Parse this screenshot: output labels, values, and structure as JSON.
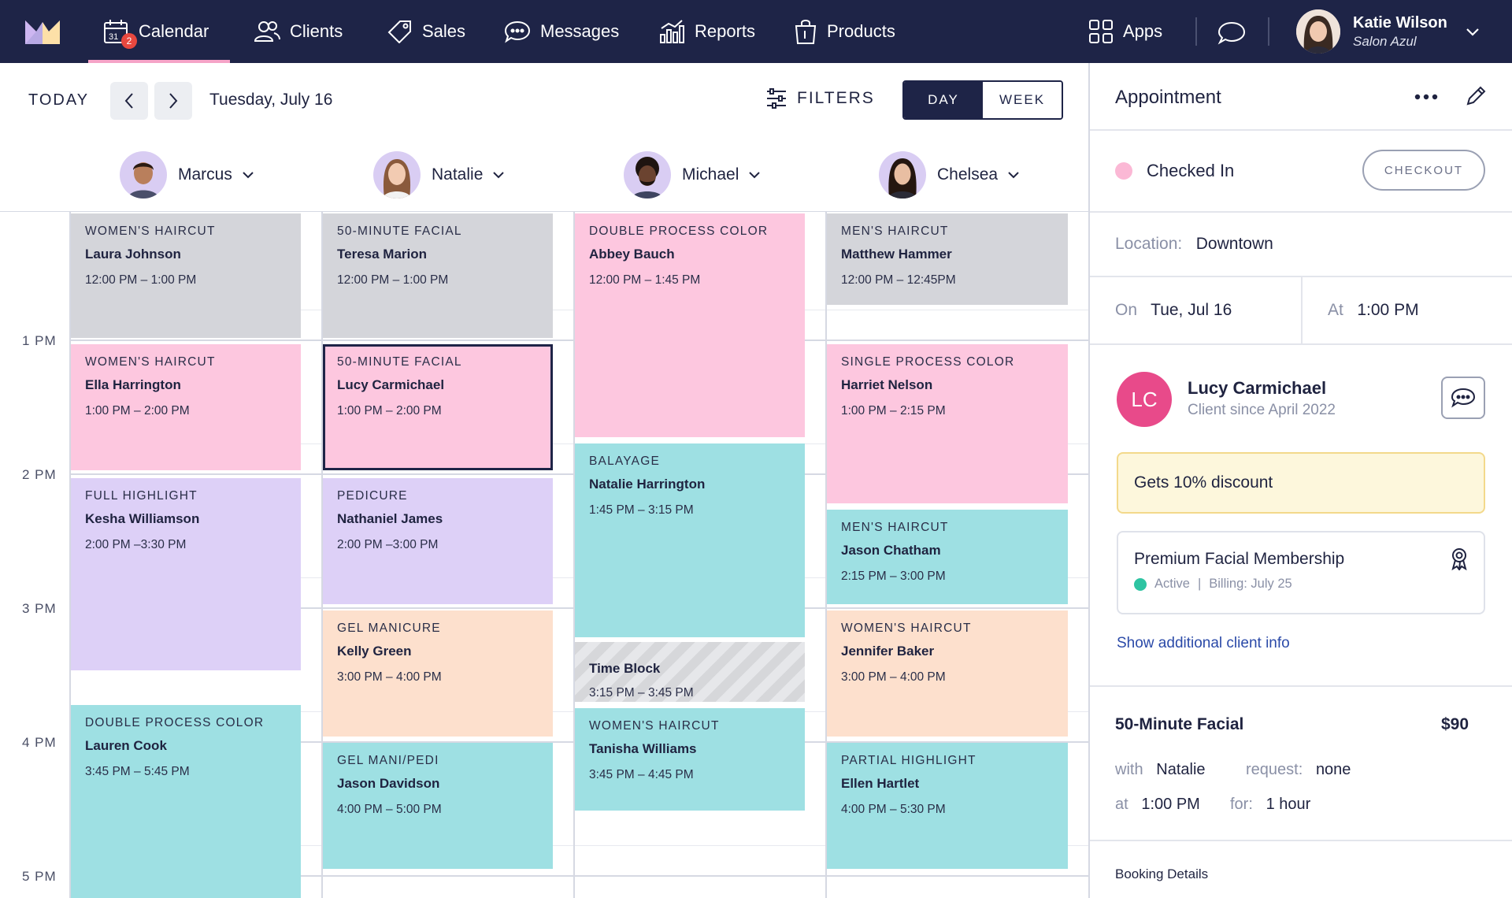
{
  "nav": {
    "items": [
      {
        "label": "Calendar",
        "icon": "calendar-icon",
        "badge": "2",
        "active": true
      },
      {
        "label": "Clients",
        "icon": "clients-icon"
      },
      {
        "label": "Sales",
        "icon": "tag-icon"
      },
      {
        "label": "Messages",
        "icon": "chat-icon"
      },
      {
        "label": "Reports",
        "icon": "chart-icon"
      },
      {
        "label": "Products",
        "icon": "bag-icon"
      }
    ],
    "apps_label": "Apps",
    "user": {
      "name": "Katie Wilson",
      "salon": "Salon Azul"
    }
  },
  "toolbar": {
    "today_label": "TODAY",
    "date_label": "Tuesday, July 16",
    "filters_label": "FILTERS",
    "day_label": "DAY",
    "week_label": "WEEK",
    "active_view": "day"
  },
  "staff": [
    "Marcus",
    "Natalie",
    "Michael",
    "Chelsea"
  ],
  "hours": [
    "1 PM",
    "2 PM",
    "3 PM",
    "4 PM",
    "5 PM"
  ],
  "columns": [
    {
      "appointments": [
        {
          "service": "WOMEN'S HAIRCUT",
          "client": "Laura Johnson",
          "time": "12:00 PM – 1:00 PM",
          "color": "gray"
        },
        {
          "service": "WOMEN'S HAIRCUT",
          "client": "Ella Harrington",
          "time": "1:00 PM – 2:00 PM",
          "color": "pink"
        },
        {
          "service": "FULL HIGHLIGHT",
          "client": "Kesha Williamson",
          "time": "2:00 PM –3:30 PM",
          "color": "purple"
        },
        {
          "service": "DOUBLE PROCESS COLOR",
          "client": "Lauren Cook",
          "time": "3:45 PM – 5:45 PM",
          "color": "cyan"
        }
      ]
    },
    {
      "appointments": [
        {
          "service": "50-MINUTE FACIAL",
          "client": "Teresa Marion",
          "time": "12:00 PM – 1:00 PM",
          "color": "gray"
        },
        {
          "service": "50-MINUTE FACIAL",
          "client": "Lucy Carmichael",
          "time": "1:00 PM – 2:00 PM",
          "color": "pink",
          "selected": true
        },
        {
          "service": "PEDICURE",
          "client": "Nathaniel James",
          "time": "2:00 PM –3:00 PM",
          "color": "purple"
        },
        {
          "service": "GEL MANICURE",
          "client": "Kelly Green",
          "time": "3:00 PM – 4:00 PM",
          "color": "peach"
        },
        {
          "service": "GEL MANI/PEDI",
          "client": "Jason Davidson",
          "time": "4:00 PM – 5:00 PM",
          "color": "cyan"
        }
      ]
    },
    {
      "appointments": [
        {
          "service": "DOUBLE PROCESS COLOR",
          "client": "Abbey Bauch",
          "time": "12:00 PM – 1:45 PM",
          "color": "pink"
        },
        {
          "service": "BALAYAGE",
          "client": "Natalie Harrington",
          "time": "1:45 PM – 3:15 PM",
          "color": "cyan"
        },
        {
          "service": "",
          "client": "Time Block",
          "time": "3:15 PM – 3:45 PM",
          "color": "hatch"
        },
        {
          "service": "WOMEN'S HAIRCUT",
          "client": "Tanisha Williams",
          "time": "3:45 PM – 4:45 PM",
          "color": "cyan"
        }
      ]
    },
    {
      "appointments": [
        {
          "service": "MEN'S HAIRCUT",
          "client": "Matthew Hammer",
          "time": "12:00 PM – 12:45PM",
          "color": "gray"
        },
        {
          "service": "SINGLE PROCESS COLOR",
          "client": "Harriet Nelson",
          "time": "1:00 PM – 2:15 PM",
          "color": "pink"
        },
        {
          "service": "MEN'S HAIRCUT",
          "client": "Jason Chatham",
          "time": "2:15 PM – 3:00 PM",
          "color": "cyan"
        },
        {
          "service": "WOMEN'S HAIRCUT",
          "client": "Jennifer Baker",
          "time": "3:00 PM – 4:00 PM",
          "color": "peach"
        },
        {
          "service": "PARTIAL HIGHLIGHT",
          "client": "Ellen Hartlet",
          "time": "4:00 PM – 5:30 PM",
          "color": "cyan"
        }
      ]
    }
  ],
  "panel": {
    "title": "Appointment",
    "status": "Checked In",
    "checkout_label": "CHECKOUT",
    "location_label": "Location:",
    "location": "Downtown",
    "on_label": "On",
    "on_value": "Tue, Jul 16",
    "at_label": "At",
    "at_value": "1:00 PM",
    "client": {
      "initials": "LC",
      "name": "Lucy Carmichael",
      "since": "Client since April 2022"
    },
    "discount": "Gets 10% discount",
    "membership": {
      "title": "Premium Facial Membership",
      "status": "Active",
      "billing": "Billing: July 25"
    },
    "show_more": "Show additional client info",
    "service": {
      "title": "50-Minute Facial",
      "price": "$90",
      "with_label": "with",
      "with_value": "Natalie",
      "request_label": "request:",
      "request_value": "none",
      "at_label": "at",
      "at_value": "1:00 PM",
      "for_label": "for:",
      "for_value": "1 hour"
    },
    "booking_label": "Booking Details"
  }
}
